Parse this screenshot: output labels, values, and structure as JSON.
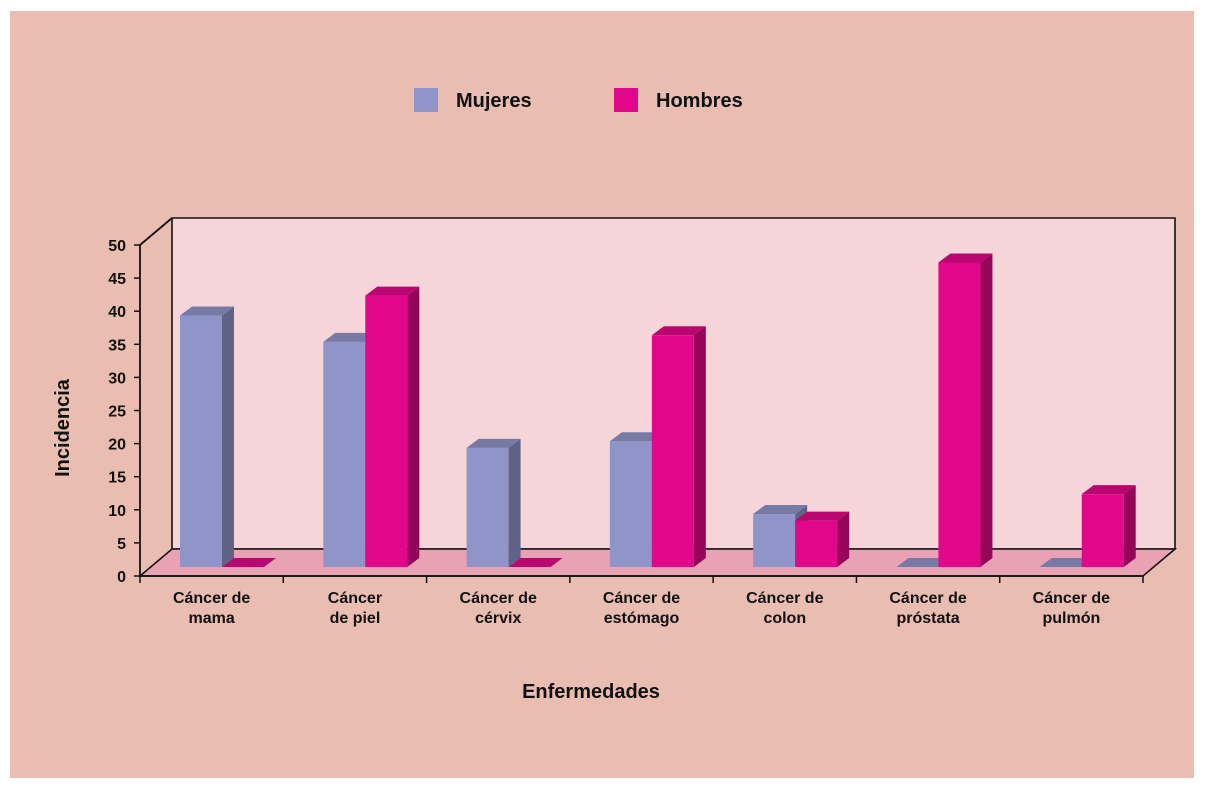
{
  "colors": {
    "background": "#eabdb2",
    "plot_wall": "#f5d5d8",
    "plot_floor": "#e9a1b4",
    "mujeres": "#9095c9",
    "hombres": "#e2078a"
  },
  "chart_data": {
    "type": "bar",
    "title": "",
    "xlabel": "Enfermedades",
    "ylabel": "Incidencia",
    "ylim": [
      0,
      50
    ],
    "yticks": [
      0,
      5,
      10,
      15,
      20,
      25,
      30,
      35,
      40,
      45,
      50
    ],
    "legend_position": "top-center",
    "grid": false,
    "categories": [
      [
        "Cáncer de",
        "mama"
      ],
      [
        "Cáncer",
        "de piel"
      ],
      [
        "Cáncer de",
        "cérvix"
      ],
      [
        "Cáncer de",
        "estómago"
      ],
      [
        "Cáncer de",
        "colon"
      ],
      [
        "Cáncer de",
        "próstata"
      ],
      [
        "Cáncer de",
        "pulmón"
      ]
    ],
    "series": [
      {
        "name": "Mujeres",
        "color_key": "mujeres",
        "values": [
          38,
          34,
          18,
          19,
          8,
          0,
          0
        ]
      },
      {
        "name": "Hombres",
        "color_key": "hombres",
        "values": [
          0,
          41,
          0,
          35,
          7,
          46,
          11
        ]
      }
    ]
  }
}
